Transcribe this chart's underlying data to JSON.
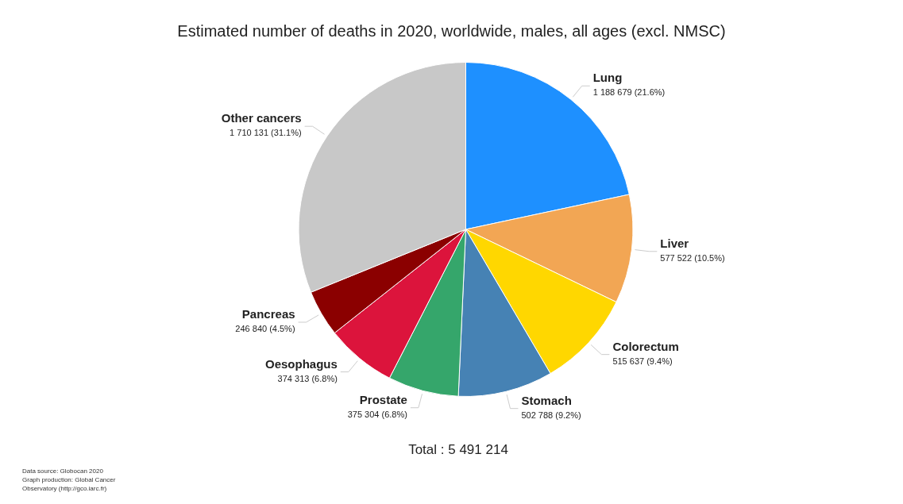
{
  "chart_data": {
    "type": "pie",
    "title": "Estimated number of deaths in 2020, worldwide, males, all ages (excl. NMSC)",
    "categories": [
      "Lung",
      "Liver",
      "Colorectum",
      "Stomach",
      "Prostate",
      "Oesophagus",
      "Pancreas",
      "Other cancers"
    ],
    "values": [
      1188679,
      577522,
      515637,
      502788,
      375304,
      374313,
      246840,
      1710131
    ],
    "colors": [
      "#1e90ff",
      "#f2a654",
      "#ffd700",
      "#4682b4",
      "#35a66b",
      "#dc143c",
      "#8b0000",
      "#c8c8c8"
    ],
    "value_labels": [
      "1 188 679 (21.6%)",
      "577 522 (10.5%)",
      "515 637 (9.4%)",
      "502 788 (9.2%)",
      "375 304 (6.8%)",
      "374 313 (6.8%)",
      "246 840 (4.5%)",
      "1 710 131 (31.1%)"
    ],
    "annotations": [
      "Total : 5 491 214",
      "Data source: Globocan 2020\nGraph production: Global Cancer\nObservatory (http://gco.iarc.fr)"
    ],
    "legend": false
  }
}
